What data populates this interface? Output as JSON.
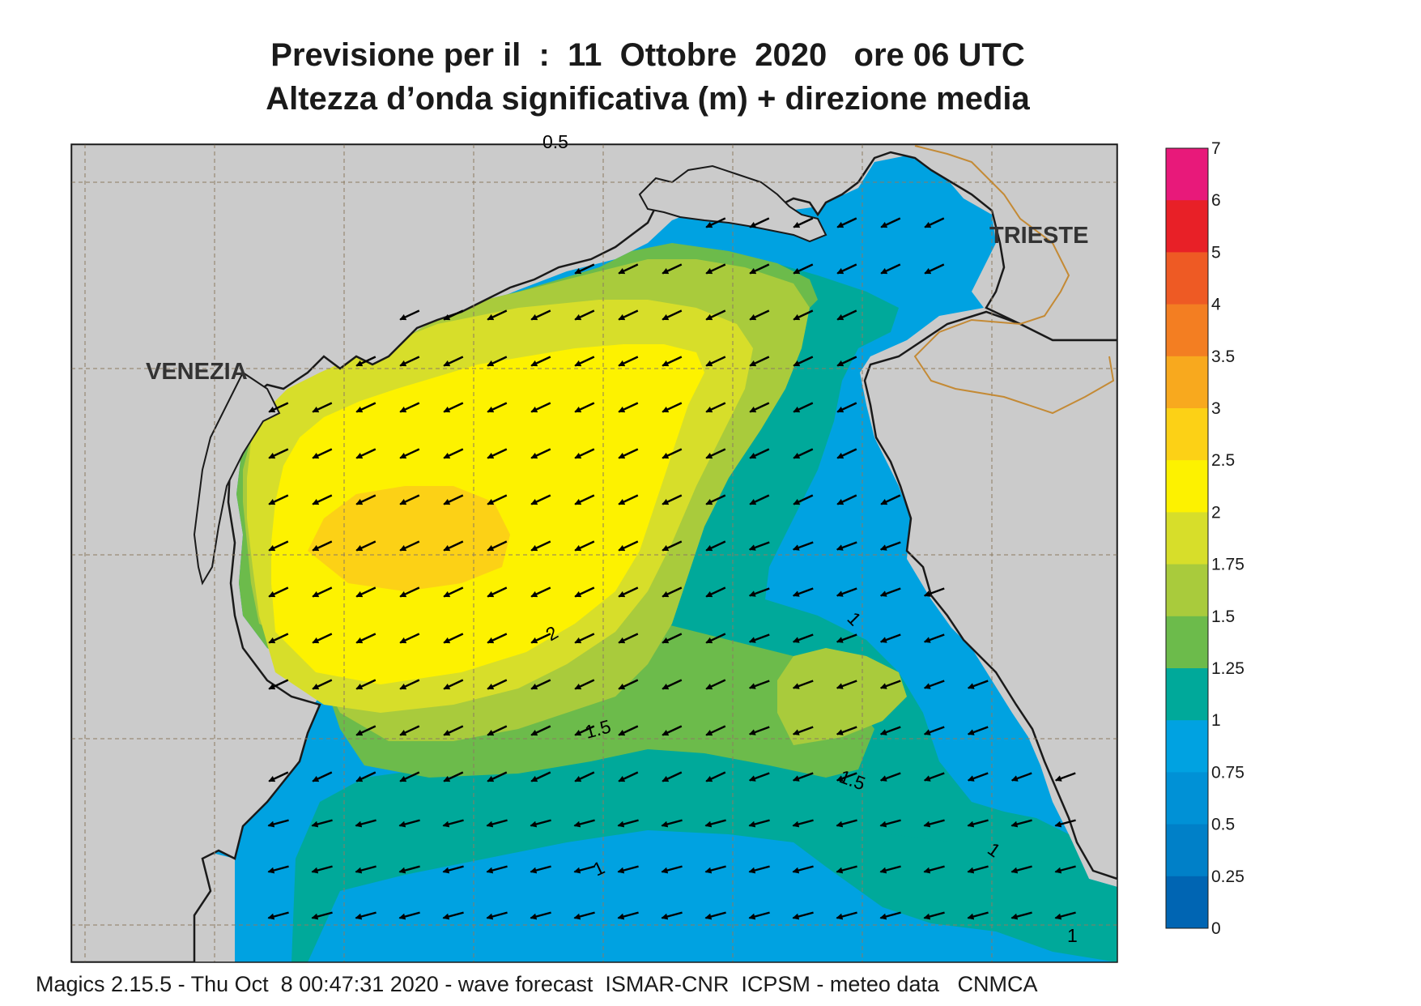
{
  "title_line1": "Previsione per il  :  11  Ottobre  2020   ore 06 UTC",
  "title_line2": "Altezza d’onda significativa (m) + direzione media",
  "footer": "Magics 2.15.5 - Thu Oct  8 00:47:31 2020 - wave forecast  ISMAR-CNR  ICPSM - meteo data   CNMCA",
  "cities": [
    {
      "name": "VENEZIA"
    },
    {
      "name": "TRIESTE"
    }
  ],
  "colorbar": [
    {
      "value": "7",
      "color": "#e8197a"
    },
    {
      "value": "6",
      "color": "#e82027"
    },
    {
      "value": "5",
      "color": "#ee5a24"
    },
    {
      "value": "4",
      "color": "#f37e22"
    },
    {
      "value": "3.5",
      "color": "#f8a91e"
    },
    {
      "value": "3",
      "color": "#fcd116"
    },
    {
      "value": "2.5",
      "color": "#fdf200"
    },
    {
      "value": "2",
      "color": "#d7de2a"
    },
    {
      "value": "1.75",
      "color": "#a9cb3c"
    },
    {
      "value": "1.5",
      "color": "#6cbb4b"
    },
    {
      "value": "1.25",
      "color": "#00a99a"
    },
    {
      "value": "1",
      "color": "#00a2e1"
    },
    {
      "value": "0.75",
      "color": "#0091d6"
    },
    {
      "value": "0.5",
      "color": "#0080c8"
    },
    {
      "value": "0.25",
      "color": "#0065b3"
    },
    {
      "value": "0",
      "color": ""
    }
  ],
  "contour_labels": [
    "2",
    "1.5",
    "1.5",
    "1",
    "1",
    "1",
    "1",
    "0.5"
  ],
  "land_color": "#cbcbcb",
  "wave_direction": "arrows pointing toward the west-southwest"
}
